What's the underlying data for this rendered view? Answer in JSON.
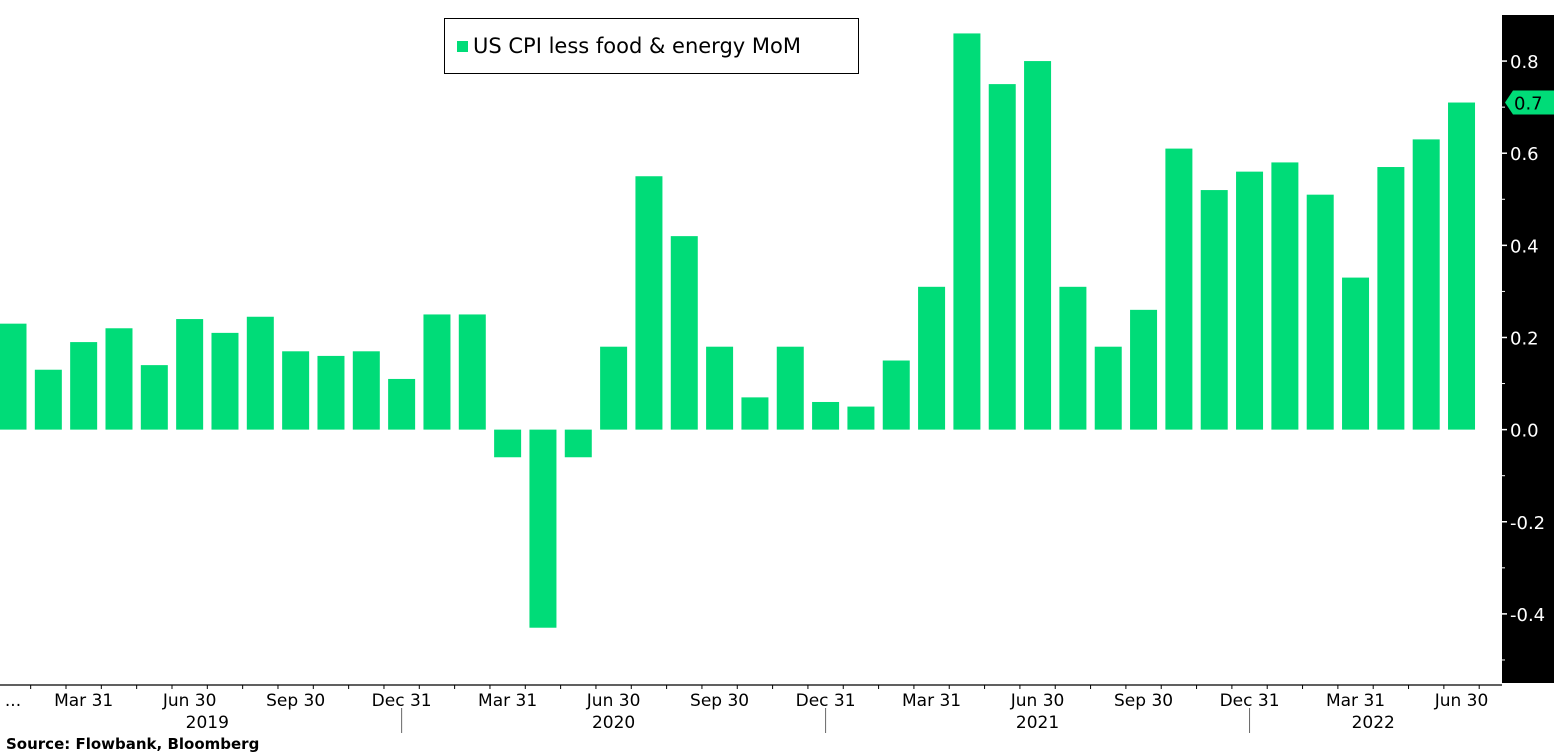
{
  "chart_data": {
    "type": "bar",
    "title": "",
    "legend": {
      "label": "US CPI less food & energy MoM",
      "placement": "top-center"
    },
    "xlabel": "",
    "ylabel": "",
    "ylim": [
      -0.55,
      0.9
    ],
    "yticks": [
      -0.4,
      -0.2,
      0.0,
      0.2,
      0.4,
      0.6,
      0.8
    ],
    "ytick_labels": [
      "-0.4",
      "-0.2",
      "0.0",
      "0.2",
      "0.4",
      "0.6",
      "0.8"
    ],
    "y_axis_side": "right",
    "last_value_label": "0.7",
    "categories": [
      "Jan 2019",
      "Feb 2019",
      "Mar 2019",
      "Apr 2019",
      "May 2019",
      "Jun 2019",
      "Jul 2019",
      "Aug 2019",
      "Sep 2019",
      "Oct 2019",
      "Nov 2019",
      "Dec 2019",
      "Jan 2020",
      "Feb 2020",
      "Mar 2020",
      "Apr 2020",
      "May 2020",
      "Jun 2020",
      "Jul 2020",
      "Aug 2020",
      "Sep 2020",
      "Oct 2020",
      "Nov 2020",
      "Dec 2020",
      "Jan 2021",
      "Feb 2021",
      "Mar 2021",
      "Apr 2021",
      "May 2021",
      "Jun 2021",
      "Jul 2021",
      "Aug 2021",
      "Sep 2021",
      "Oct 2021",
      "Nov 2021",
      "Dec 2021",
      "Jan 2022",
      "Feb 2022",
      "Mar 2022",
      "Apr 2022",
      "May 2022",
      "Jun 2022"
    ],
    "values": [
      0.23,
      0.13,
      0.19,
      0.22,
      0.14,
      0.24,
      0.21,
      0.245,
      0.17,
      0.16,
      0.17,
      0.11,
      0.25,
      0.25,
      -0.06,
      -0.43,
      -0.06,
      0.18,
      0.55,
      0.42,
      0.18,
      0.07,
      0.18,
      0.06,
      0.05,
      0.15,
      0.31,
      0.86,
      0.75,
      0.8,
      0.31,
      0.18,
      0.26,
      0.61,
      0.52,
      0.56,
      0.58,
      0.51,
      0.33,
      0.57,
      0.63,
      0.71
    ],
    "xtick_labels": [
      {
        "index": 0,
        "label": "..."
      },
      {
        "index": 2,
        "label": "Mar 31"
      },
      {
        "index": 5,
        "label": "Jun 30"
      },
      {
        "index": 8,
        "label": "Sep 30"
      },
      {
        "index": 11,
        "label": "Dec 31"
      },
      {
        "index": 14,
        "label": "Mar 31"
      },
      {
        "index": 17,
        "label": "Jun 30"
      },
      {
        "index": 20,
        "label": "Sep 30"
      },
      {
        "index": 23,
        "label": "Dec 31"
      },
      {
        "index": 26,
        "label": "Mar 31"
      },
      {
        "index": 29,
        "label": "Jun 30"
      },
      {
        "index": 32,
        "label": "Sep 30"
      },
      {
        "index": 35,
        "label": "Dec 31"
      },
      {
        "index": 38,
        "label": "Mar 31"
      },
      {
        "index": 41,
        "label": "Jun 30"
      }
    ],
    "year_labels": [
      {
        "center_index": 5.5,
        "label": "2019"
      },
      {
        "center_index": 17,
        "label": "2020"
      },
      {
        "center_index": 29,
        "label": "2021"
      },
      {
        "center_index": 38.5,
        "label": "2022"
      }
    ],
    "color": "#00dc78",
    "grid": false
  },
  "source": "Source: Flowbank, Bloomberg"
}
